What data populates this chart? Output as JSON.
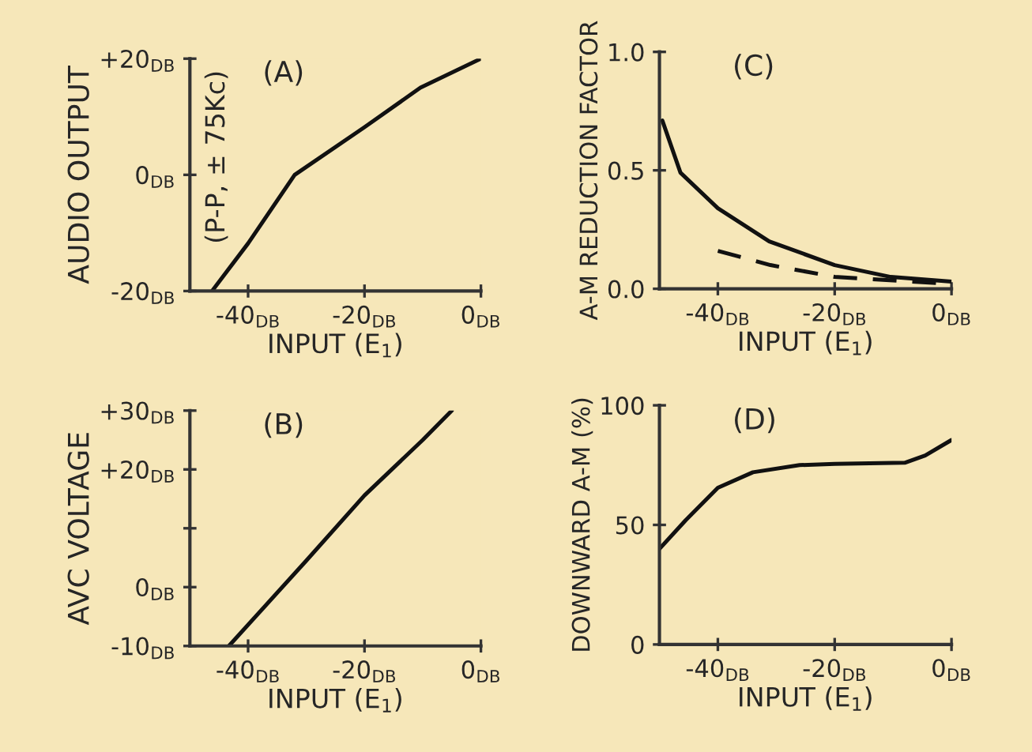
{
  "chart_data": [
    {
      "type": "line",
      "ylabel": "AUDIO OUTPUT",
      "xlabel": "INPUT (E$_{1}$)",
      "annotations": [
        "(A)",
        "(P-P, ± 75Kc)"
      ],
      "xlim": [
        -50,
        0
      ],
      "ylim": [
        -20,
        20
      ],
      "xticks": [
        {
          "value": -40,
          "label": "-40$_{DB}$"
        },
        {
          "value": -20,
          "label": "-20$_{DB}$"
        },
        {
          "value": 0,
          "label": "0$_{DB}$"
        }
      ],
      "yticks": [
        {
          "value": -20,
          "label": "-20$_{DB}$"
        },
        {
          "value": 0,
          "label": "0$_{DB}$"
        },
        {
          "value": 20,
          "label": "+20$_{DB}$"
        }
      ],
      "grid": false,
      "legend": false,
      "series": [
        {
          "color": "#111111",
          "line_style": "solid",
          "x": [
            -46.2,
            -40,
            -32,
            -20,
            -10.4,
            0
          ],
          "values": [
            -20,
            -11.8,
            0,
            8.2,
            15,
            20
          ]
        }
      ]
    },
    {
      "type": "line",
      "ylabel": "A-M REDUCTION FACTOR",
      "xlabel": "INPUT (E$_{1}$)",
      "annotations": [
        "(C)"
      ],
      "xlim": [
        -50,
        0
      ],
      "ylim": [
        0,
        1
      ],
      "xticks": [
        {
          "value": -40,
          "label": "-40$_{DB}$"
        },
        {
          "value": -20,
          "label": "-20$_{DB}$"
        },
        {
          "value": 0,
          "label": "0$_{DB}$"
        }
      ],
      "yticks": [
        {
          "value": 0,
          "label": "0.0"
        },
        0.5,
        {
          "value": 1,
          "label": "1.0"
        }
      ],
      "grid": false,
      "legend": false,
      "series": [
        {
          "color": "#111111",
          "line_style": "solid",
          "x": [
            -49.5,
            -46.4,
            -40,
            -31.2,
            -20,
            -10.4,
            0
          ],
          "values": [
            0.71,
            0.49,
            0.34,
            0.2,
            0.1,
            0.05,
            0.03
          ]
        },
        {
          "color": "#111111",
          "line_style": "dashed",
          "x": [
            -40,
            -31,
            -20,
            0
          ],
          "values": [
            0.16,
            0.1,
            0.05,
            0.02
          ]
        }
      ]
    },
    {
      "type": "line",
      "ylabel": "AVC VOLTAGE",
      "xlabel": "INPUT (E$_{1}$)",
      "annotations": [
        "(B)"
      ],
      "xlim": [
        -50,
        0
      ],
      "ylim": [
        -10,
        30
      ],
      "xticks": [
        {
          "value": -40,
          "label": "-40$_{DB}$"
        },
        {
          "value": -20,
          "label": "-20$_{DB}$"
        },
        {
          "value": 0,
          "label": "0$_{DB}$"
        }
      ],
      "yticks": [
        {
          "value": -10,
          "label": "-10$_{DB}$"
        },
        {
          "value": 0,
          "label": "0$_{DB}$"
        },
        {
          "value": 10,
          "label": null
        },
        {
          "value": 20,
          "label": "+20$_{DB}$"
        },
        {
          "value": 30,
          "label": "+30$_{DB}$"
        }
      ],
      "grid": false,
      "legend": false,
      "series": [
        {
          "color": "#111111",
          "line_style": "solid",
          "x": [
            -43.3,
            -30,
            -20,
            -10,
            -5
          ],
          "values": [
            -10,
            4.5,
            15.6,
            25,
            30
          ]
        }
      ]
    },
    {
      "type": "line",
      "ylabel": "DOWNWARD A-M (%)",
      "xlabel": "INPUT (E$_{1}$)",
      "annotations": [
        "(D)"
      ],
      "xlim": [
        -50,
        0
      ],
      "ylim": [
        0,
        100
      ],
      "xticks": [
        {
          "value": -40,
          "label": "-40$_{DB}$"
        },
        {
          "value": -20,
          "label": "-20$_{DB}$"
        },
        {
          "value": 0,
          "label": "0$_{DB}$"
        }
      ],
      "yticks": [
        0,
        50,
        100
      ],
      "grid": false,
      "legend": false,
      "series": [
        {
          "color": "#111111",
          "line_style": "solid",
          "x": [
            -50,
            -45.5,
            -40,
            -34,
            -26,
            -20,
            -8,
            -4.5,
            0
          ],
          "values": [
            40,
            52,
            65.5,
            72,
            75,
            75.5,
            76,
            79,
            85.5
          ]
        }
      ]
    }
  ]
}
